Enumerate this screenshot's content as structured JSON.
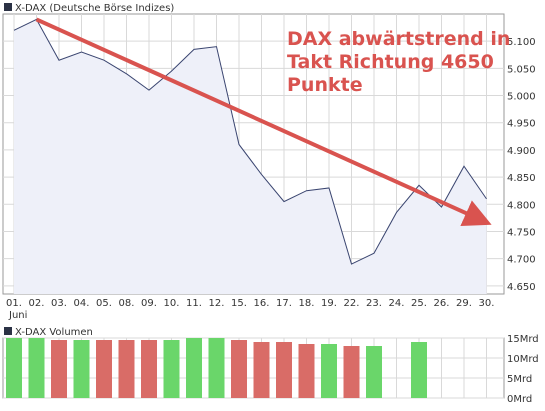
{
  "main_panel": {
    "title": "X-DAX (Deutsche Börse Indizes)",
    "legend_color": "#2b3245"
  },
  "annotation": {
    "lines": [
      "DAX abwärtstrend in",
      "Takt Richtung 4650",
      "Punkte"
    ],
    "color": "#d9534f"
  },
  "volume_panel": {
    "title": "X-DAX Volumen",
    "legend_color": "#2b3245"
  },
  "colors": {
    "line": "#3a4570",
    "area": "#eef0f9",
    "grid": "#d9d9d9",
    "arrow": "#d9534f",
    "volume_up": "#6ad66a",
    "volume_down": "#d96c67"
  },
  "chart_data": [
    {
      "type": "area",
      "title": "X-DAX (Deutsche Börse Indizes)",
      "x": [
        "01.",
        "02.",
        "03.",
        "04.",
        "05.",
        "08.",
        "09.",
        "10.",
        "11.",
        "12.",
        "15.",
        "16.",
        "17.",
        "18.",
        "19.",
        "22.",
        "23.",
        "24.",
        "25.",
        "26.",
        "29.",
        "30."
      ],
      "x_sublabel": "Juni",
      "values": [
        5120,
        5140,
        5065,
        5080,
        5065,
        5040,
        5010,
        5045,
        5085,
        5090,
        4910,
        4855,
        4805,
        4825,
        4830,
        4690,
        4710,
        4785,
        4835,
        4795,
        4870,
        4810
      ],
      "ylim": [
        4635,
        5150
      ],
      "yticks": [
        4650,
        4700,
        4750,
        4800,
        4850,
        4900,
        4950,
        5000,
        5050,
        5100
      ],
      "ytick_labels": [
        "4.650",
        "4.700",
        "4.750",
        "4.800",
        "4.850",
        "4.900",
        "4.950",
        "5.000",
        "5.050",
        "5.100"
      ],
      "trend_arrow": {
        "from": {
          "x": "02.",
          "y": 5140
        },
        "to": {
          "x": "30.",
          "y": 4770
        }
      },
      "grid": true
    },
    {
      "type": "bar",
      "title": "X-DAX Volumen",
      "categories": [
        "01.",
        "02.",
        "03.",
        "04.",
        "05.",
        "08.",
        "09.",
        "10.",
        "11.",
        "12.",
        "15.",
        "16.",
        "17.",
        "18.",
        "19.",
        "22.",
        "23.",
        "24.",
        "25.",
        "26.",
        "29.",
        "30."
      ],
      "values": [
        15,
        15,
        14.5,
        14.5,
        14.5,
        14.5,
        14.5,
        14.5,
        15,
        15,
        14.5,
        14,
        14,
        13.5,
        13.5,
        13,
        13,
        null,
        14,
        null,
        null,
        null
      ],
      "directions": [
        "up",
        "up",
        "down",
        "up",
        "down",
        "down",
        "down",
        "up",
        "up",
        "up",
        "down",
        "down",
        "down",
        "down",
        "up",
        "down",
        "up",
        null,
        "up",
        null,
        null,
        null
      ],
      "ylim": [
        0,
        15
      ],
      "yticks": [
        0,
        5,
        10,
        15
      ],
      "ytick_labels": [
        "0Mrd",
        "5Mrd",
        "10Mrd",
        "15Mrd"
      ],
      "ylabel": "",
      "grid": true
    }
  ]
}
